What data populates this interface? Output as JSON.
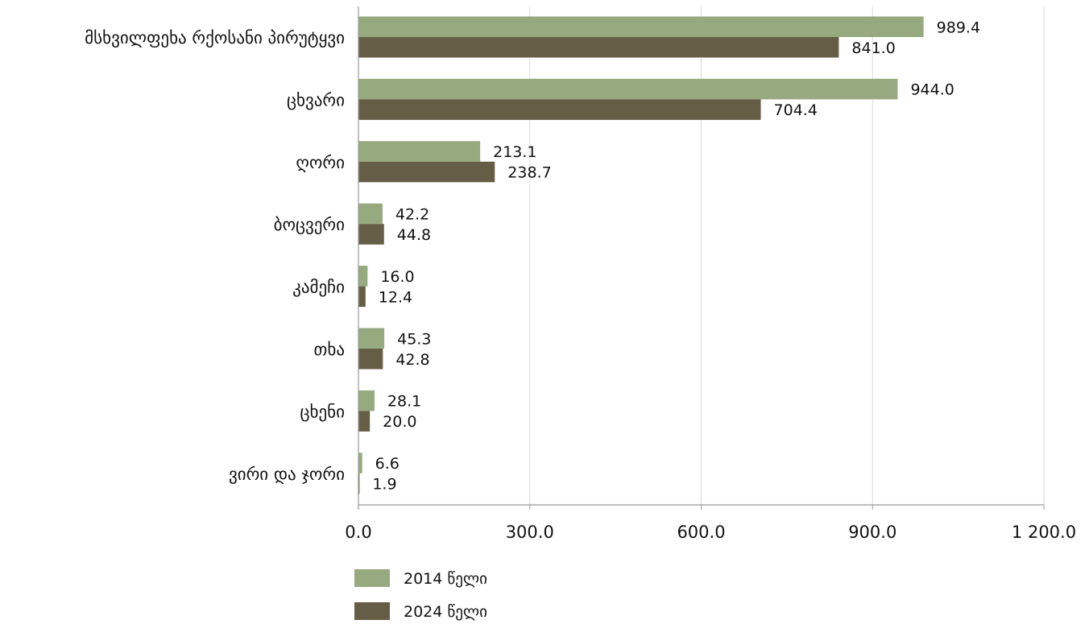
{
  "chart_data": {
    "type": "bar",
    "orientation": "horizontal",
    "categories": [
      "მსხვილფეხა რქოსანი პირუტყვი",
      "ცხვარი",
      "ღორი",
      "ბოცვერი",
      "კამეჩი",
      "თხა",
      "ცხენი",
      "ვირი და ჯორი"
    ],
    "series": [
      {
        "name": "2014 წელი",
        "color": "#97a97f",
        "values": [
          989.4,
          944.0,
          213.1,
          42.2,
          16.0,
          45.3,
          28.1,
          6.6
        ],
        "labels": [
          "989.4",
          "944.0",
          "213.1",
          "42.2",
          "16.0",
          "45.3",
          "28.1",
          "6.6"
        ]
      },
      {
        "name": "2024 წელი",
        "color": "#665d47",
        "values": [
          841.0,
          704.4,
          238.7,
          44.8,
          12.4,
          42.8,
          20.0,
          1.9
        ],
        "labels": [
          "841.0",
          "704.4",
          "238.7",
          "44.8",
          "12.4",
          "42.8",
          "20.0",
          "1.9"
        ]
      }
    ],
    "xlim": [
      0,
      1200
    ],
    "xticks": [
      0,
      300,
      600,
      900,
      1200
    ],
    "xtick_labels": [
      "0.0",
      "300.0",
      "600.0",
      "900.0",
      "1 200.0"
    ],
    "grid": "vertical",
    "legend_position": "bottom-left"
  }
}
